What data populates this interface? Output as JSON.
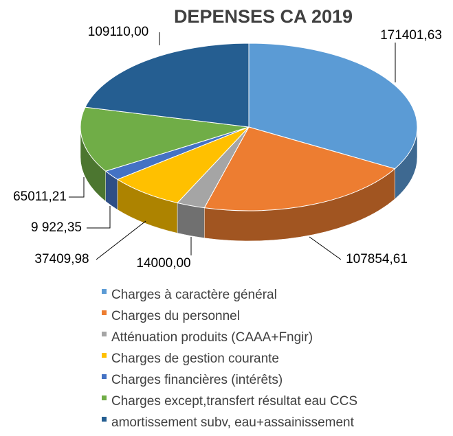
{
  "chart_data": {
    "type": "pie",
    "title": "DEPENSES CA 2019",
    "categories": [
      "Charges à caractère général",
      "Charges du personnel",
      "Atténuation  produits (CAAA+Fngir)",
      "Charges de gestion courante",
      "Charges financières  (intérêts)",
      "Charges except,transfert  résultat eau CCS",
      "amortissement subv, eau+assainissement"
    ],
    "values": [
      171401.63,
      107854.61,
      14000.0,
      37409.98,
      9922.35,
      65011.21,
      109110.0
    ],
    "value_labels": [
      "171401,63",
      "107854,61",
      "14000,00",
      "37409,98",
      "9 922,35",
      "65011,21",
      "109110,00"
    ],
    "colors": [
      "#5b9bd5",
      "#ed7d31",
      "#a5a5a5",
      "#ffc000",
      "#4472c4",
      "#70ad47",
      "#255e91"
    ]
  }
}
